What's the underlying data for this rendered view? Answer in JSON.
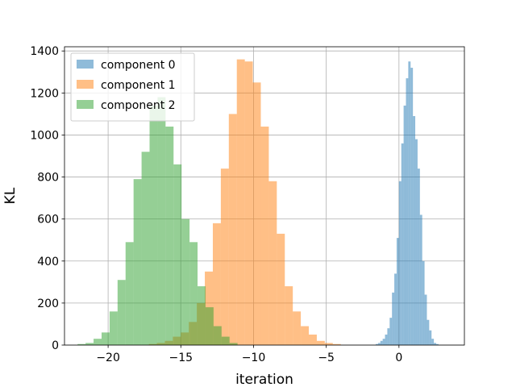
{
  "chart_data": {
    "type": "histogram",
    "xlabel": "iteration",
    "ylabel": "KL",
    "xlim": [
      -23,
      4.5
    ],
    "ylim": [
      0,
      1420
    ],
    "xticks": [
      -20,
      -15,
      -10,
      -5,
      0
    ],
    "xtick_labels": [
      "−20",
      "−15",
      "−10",
      "−5",
      "0"
    ],
    "yticks": [
      0,
      200,
      400,
      600,
      800,
      1000,
      1200,
      1400
    ],
    "grid": true,
    "legend_position": "top-left",
    "series": [
      {
        "name": "component 0",
        "color": "#1f77b4",
        "bin_start": -1.6,
        "bin_width": 0.16,
        "counts": [
          5,
          10,
          20,
          30,
          50,
          80,
          130,
          250,
          340,
          510,
          780,
          960,
          1140,
          1270,
          1350,
          1320,
          1090,
          980,
          840,
          620,
          400,
          240,
          120,
          70,
          30,
          10,
          5
        ]
      },
      {
        "name": "component 1",
        "color": "#ff7f0e",
        "bin_start": -17.2,
        "bin_width": 0.55,
        "counts": [
          5,
          10,
          20,
          40,
          60,
          110,
          200,
          350,
          580,
          840,
          1100,
          1360,
          1350,
          1250,
          1040,
          780,
          530,
          280,
          160,
          90,
          50,
          20,
          10,
          5
        ]
      },
      {
        "name": "component 2",
        "color": "#2ca02c",
        "bin_start": -22.1,
        "bin_width": 0.55,
        "counts": [
          5,
          10,
          30,
          60,
          160,
          310,
          490,
          790,
          920,
          1140,
          1180,
          1040,
          860,
          600,
          490,
          280,
          180,
          90,
          40,
          10
        ]
      }
    ]
  }
}
